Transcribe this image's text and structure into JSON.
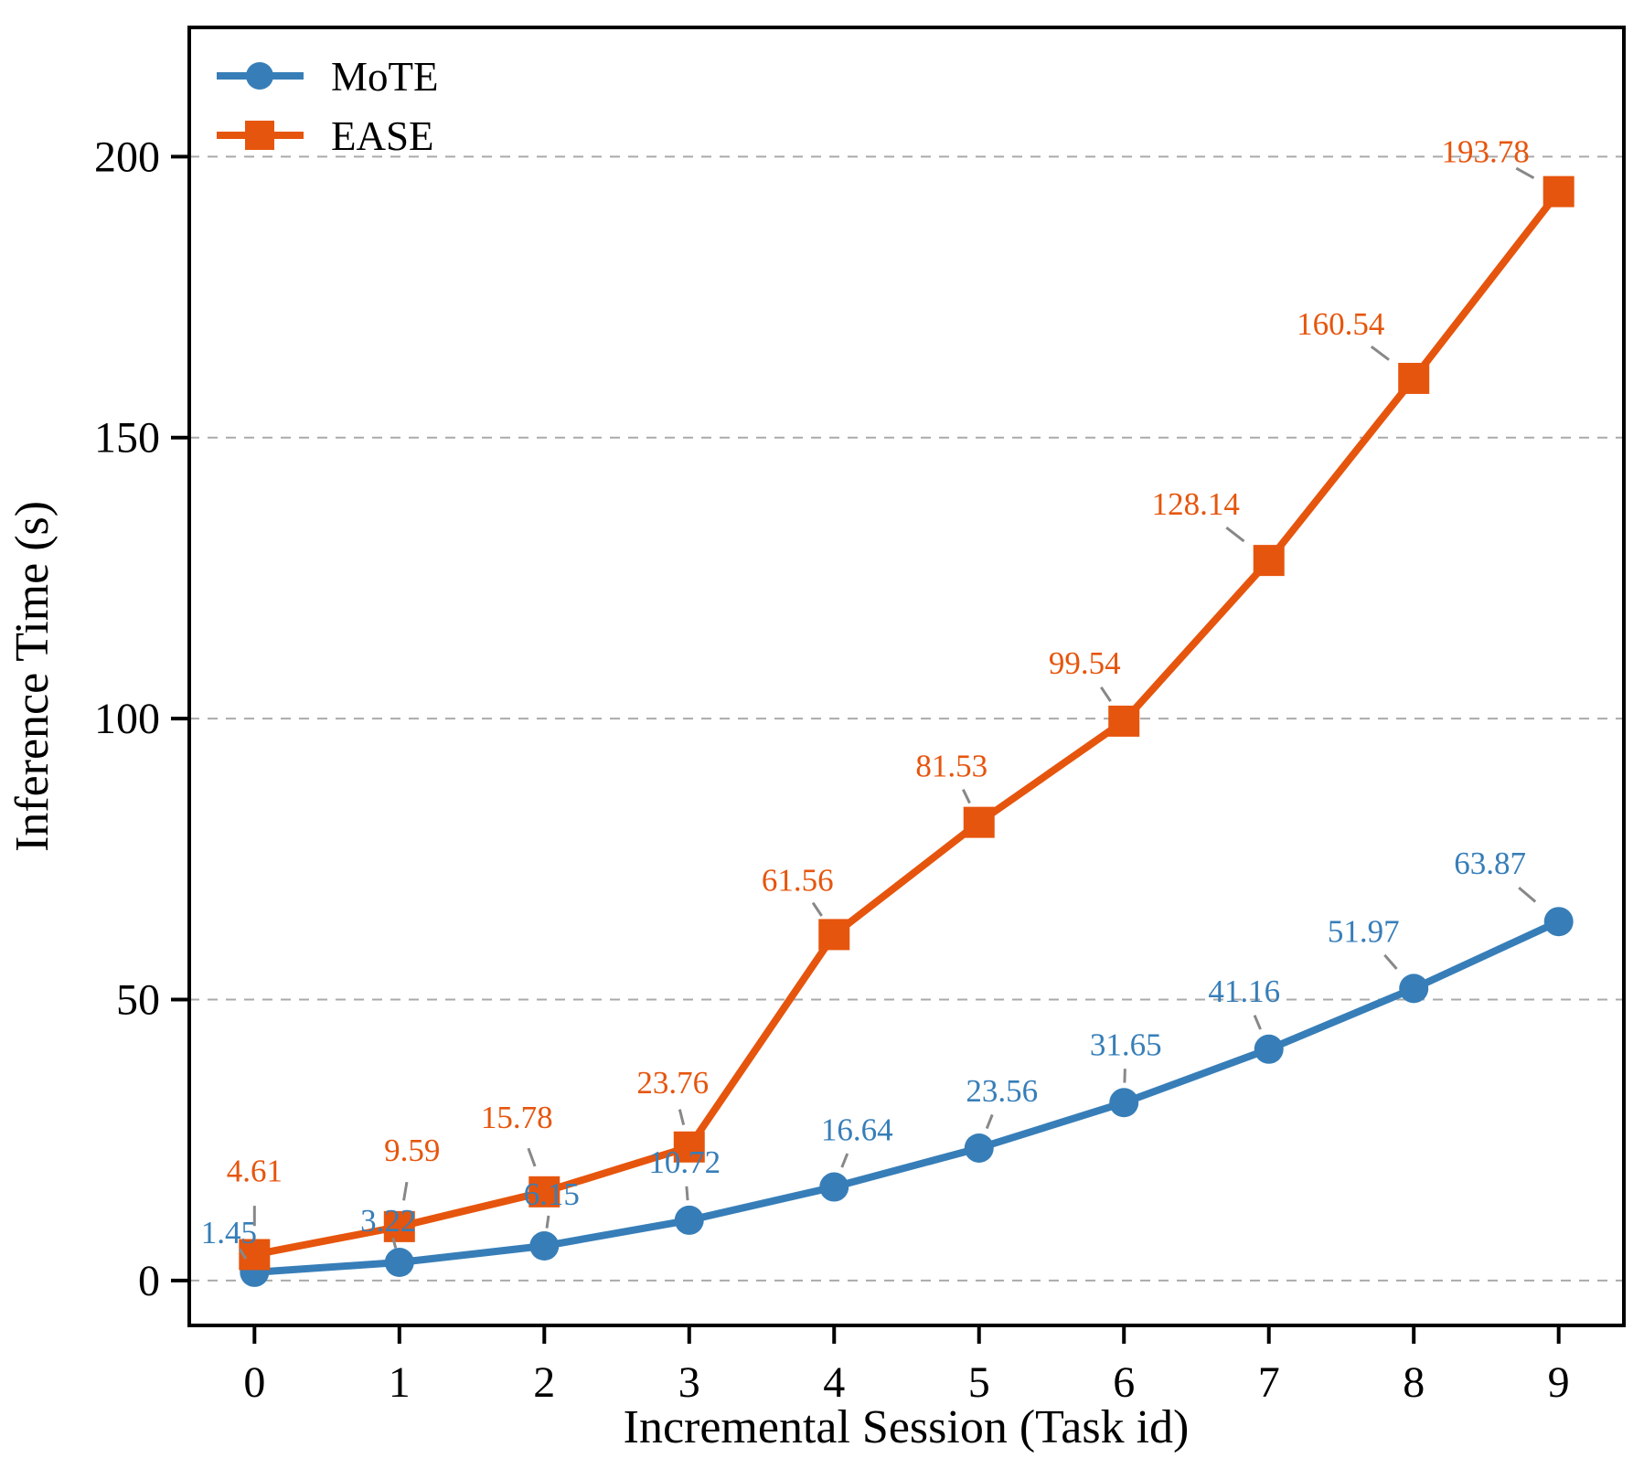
{
  "figure": {
    "background": "#ffffff"
  },
  "chart_data": {
    "type": "line",
    "x": [
      0,
      1,
      2,
      3,
      4,
      5,
      6,
      7,
      8,
      9
    ],
    "series": [
      {
        "name": "MoTE",
        "marker": "circle",
        "color": "#377eb8",
        "values": [
          1.45,
          3.22,
          6.15,
          10.72,
          16.64,
          23.56,
          31.65,
          41.16,
          51.97,
          63.87
        ]
      },
      {
        "name": "EASE",
        "marker": "square",
        "color": "#e6550d",
        "values": [
          4.61,
          9.59,
          15.78,
          23.76,
          61.56,
          81.53,
          99.54,
          128.14,
          160.54,
          193.78
        ]
      }
    ],
    "xlabel": "Incremental Session (Task id)",
    "ylabel": "Inference Time (s)",
    "xticks": [
      "0",
      "1",
      "2",
      "3",
      "4",
      "5",
      "6",
      "7",
      "8",
      "9"
    ],
    "yticks": [
      "0",
      "50",
      "100",
      "150",
      "200"
    ],
    "ytick_values": [
      0,
      50,
      100,
      150,
      200
    ],
    "xlim": [
      -0.45,
      9.45
    ],
    "ylim": [
      -8,
      223
    ],
    "grid": {
      "axis": "y",
      "style": "dashed",
      "color": "#aaaaaa",
      "on": true
    },
    "legend": {
      "position": "upper-left",
      "entries": [
        "MoTE",
        "EASE"
      ],
      "frame": false
    },
    "point_labels_visible": true,
    "point_label_decimals": 2,
    "axis_color": "#000000",
    "leader_line_color": "#888888"
  }
}
